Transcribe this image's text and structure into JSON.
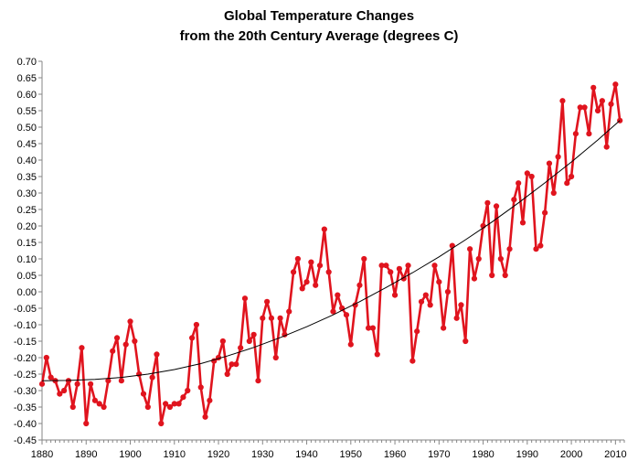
{
  "chart_data": {
    "type": "line",
    "title": "Global Temperature Changes",
    "subtitle": "from the 20th Century Average (degrees C)",
    "xlabel": "",
    "ylabel": "",
    "xlim": [
      1880,
      2012
    ],
    "ylim": [
      -0.45,
      0.7
    ],
    "x_ticks": [
      "1880",
      "1890",
      "1900",
      "1910",
      "1920",
      "1930",
      "1940",
      "1950",
      "1960",
      "1970",
      "1980",
      "1990",
      "2000",
      "2010"
    ],
    "y_ticks": [
      "0.70",
      "0.65",
      "0.60",
      "0.55",
      "0.50",
      "0.45",
      "0.40",
      "0.35",
      "0.30",
      "0.25",
      "0.20",
      "0.15",
      "0.10",
      "0.05",
      "0.00",
      "-0.05",
      "-0.10",
      "-0.15",
      "-0.20",
      "-0.25",
      "-0.30",
      "-0.35",
      "-0.40",
      "-0.45"
    ],
    "grid": false,
    "legend": "none",
    "series": [
      {
        "color": "#e0141e",
        "x": [
          1880,
          1881,
          1882,
          1883,
          1884,
          1885,
          1886,
          1887,
          1888,
          1889,
          1890,
          1891,
          1892,
          1893,
          1894,
          1895,
          1896,
          1897,
          1898,
          1899,
          1900,
          1901,
          1902,
          1903,
          1904,
          1905,
          1906,
          1907,
          1908,
          1909,
          1910,
          1911,
          1912,
          1913,
          1914,
          1915,
          1916,
          1917,
          1918,
          1919,
          1920,
          1921,
          1922,
          1923,
          1924,
          1925,
          1926,
          1927,
          1928,
          1929,
          1930,
          1931,
          1932,
          1933,
          1934,
          1935,
          1936,
          1937,
          1938,
          1939,
          1940,
          1941,
          1942,
          1943,
          1944,
          1945,
          1946,
          1947,
          1948,
          1949,
          1950,
          1951,
          1952,
          1953,
          1954,
          1955,
          1956,
          1957,
          1958,
          1959,
          1960,
          1961,
          1962,
          1963,
          1964,
          1965,
          1966,
          1967,
          1968,
          1969,
          1970,
          1971,
          1972,
          1973,
          1974,
          1975,
          1976,
          1977,
          1978,
          1979,
          1980,
          1981,
          1982,
          1983,
          1984,
          1985,
          1986,
          1987,
          1988,
          1989,
          1990,
          1991,
          1992,
          1993,
          1994,
          1995,
          1996,
          1997,
          1998,
          1999,
          2000,
          2001,
          2002,
          2003,
          2004,
          2005,
          2006,
          2007,
          2008,
          2009,
          2010,
          2011
        ],
        "values": [
          -0.28,
          -0.2,
          -0.26,
          -0.27,
          -0.31,
          -0.3,
          -0.27,
          -0.35,
          -0.28,
          -0.17,
          -0.4,
          -0.28,
          -0.33,
          -0.34,
          -0.35,
          -0.27,
          -0.18,
          -0.14,
          -0.27,
          -0.16,
          -0.09,
          -0.15,
          -0.25,
          -0.31,
          -0.35,
          -0.26,
          -0.19,
          -0.4,
          -0.34,
          -0.35,
          -0.34,
          -0.34,
          -0.32,
          -0.3,
          -0.14,
          -0.1,
          -0.29,
          -0.38,
          -0.33,
          -0.21,
          -0.2,
          -0.15,
          -0.25,
          -0.22,
          -0.22,
          -0.17,
          -0.02,
          -0.15,
          -0.13,
          -0.27,
          -0.08,
          -0.03,
          -0.08,
          -0.2,
          -0.08,
          -0.13,
          -0.06,
          0.06,
          0.1,
          0.01,
          0.03,
          0.09,
          0.02,
          0.08,
          0.19,
          0.06,
          -0.06,
          -0.01,
          -0.05,
          -0.07,
          -0.16,
          -0.04,
          0.02,
          0.1,
          -0.11,
          -0.11,
          -0.19,
          0.08,
          0.08,
          0.06,
          -0.01,
          0.07,
          0.04,
          0.08,
          -0.21,
          -0.12,
          -0.03,
          -0.01,
          -0.04,
          0.08,
          0.03,
          -0.11,
          0.0,
          0.14,
          -0.08,
          -0.04,
          -0.15,
          0.13,
          0.04,
          0.1,
          0.2,
          0.27,
          0.05,
          0.26,
          0.1,
          0.05,
          0.13,
          0.28,
          0.33,
          0.21,
          0.36,
          0.35,
          0.13,
          0.14,
          0.24,
          0.39,
          0.3,
          0.41,
          0.58,
          0.33,
          0.35,
          0.48,
          0.56,
          0.56,
          0.48,
          0.62,
          0.55,
          0.58,
          0.44,
          0.57,
          0.63,
          0.52
        ]
      },
      {
        "style": "trend",
        "color": "#000000",
        "x": [
          1880,
          1886,
          1892,
          1898,
          1904,
          1910,
          1916,
          1922,
          1928,
          1934,
          1940,
          1946,
          1952,
          1958,
          1964,
          1970,
          1976,
          1982,
          1988,
          1994,
          2000,
          2006,
          2011
        ],
        "values": [
          -0.27,
          -0.269,
          -0.266,
          -0.26,
          -0.25,
          -0.236,
          -0.218,
          -0.195,
          -0.169,
          -0.139,
          -0.106,
          -0.07,
          -0.03,
          0.013,
          0.058,
          0.106,
          0.158,
          0.212,
          0.27,
          0.331,
          0.394,
          0.461,
          0.52
        ]
      }
    ]
  }
}
